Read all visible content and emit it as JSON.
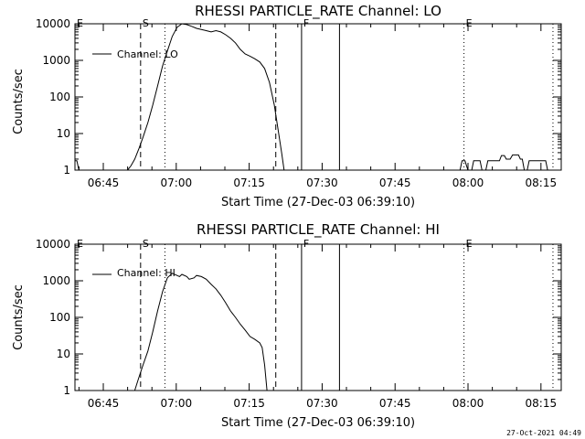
{
  "footer_timestamp": "27-Oct-2021 04:49",
  "chart_data": [
    {
      "type": "line",
      "title": "RHESSI PARTICLE_RATE Channel: LO",
      "xlabel": "Start Time (27-Dec-03 06:39:10)",
      "ylabel": "Counts/sec",
      "yscale": "log",
      "ylim": [
        1,
        10000
      ],
      "xlim_minutes": [
        0,
        100
      ],
      "x_tick_minutes": [
        5.83,
        20.83,
        35.83,
        50.83,
        65.83,
        80.83,
        95.83
      ],
      "x_tick_labels": [
        "06:45",
        "07:00",
        "07:15",
        "07:30",
        "07:45",
        "08:00",
        "08:15"
      ],
      "y_tick_values": [
        1,
        10,
        100,
        1000,
        10000
      ],
      "y_tick_labels": [
        "1",
        "10",
        "100",
        "1000",
        "10000"
      ],
      "legend": "Channel: LO",
      "markers": [
        {
          "label": "E",
          "x_minutes": 0,
          "style": "none"
        },
        {
          "label": "S",
          "x_minutes": 13.5,
          "style": "dashed"
        },
        {
          "label": "",
          "x_minutes": 18.5,
          "style": "dotted"
        },
        {
          "label": "",
          "x_minutes": 41.3,
          "style": "dashed"
        },
        {
          "label": "F",
          "x_minutes": 46.6,
          "style": "solid"
        },
        {
          "label": "",
          "x_minutes": 54.4,
          "style": "solid"
        },
        {
          "label": "E",
          "x_minutes": 80.0,
          "style": "dotted"
        },
        {
          "label": "",
          "x_minutes": 98.3,
          "style": "dotted"
        }
      ],
      "series": [
        {
          "name": "Channel: LO",
          "segments": [
            [
              [
                0,
                1.8
              ],
              [
                0.4,
                1.8
              ],
              [
                0.8,
                1.0
              ],
              [
                1.5,
                1.0
              ]
            ],
            [
              [
                10.8,
                1.0
              ],
              [
                11.5,
                1.3
              ],
              [
                12.3,
                2.0
              ],
              [
                13.2,
                4.0
              ],
              [
                14.0,
                8.0
              ],
              [
                15.0,
                20
              ],
              [
                16.0,
                60
              ],
              [
                17.0,
                200
              ],
              [
                18.0,
                700
              ],
              [
                19.0,
                1800
              ],
              [
                20.0,
                4500
              ],
              [
                21.0,
                8000
              ],
              [
                22.0,
                10000
              ],
              [
                23.0,
                9500
              ],
              [
                24.0,
                8500
              ],
              [
                25.0,
                7500
              ],
              [
                26.0,
                7000
              ],
              [
                27.0,
                6500
              ],
              [
                28.0,
                6000
              ],
              [
                29.0,
                6500
              ],
              [
                30.0,
                6000
              ],
              [
                31.0,
                5000
              ],
              [
                32.0,
                4000
              ],
              [
                33.0,
                3000
              ],
              [
                34.0,
                2000
              ],
              [
                35.0,
                1500
              ],
              [
                36.0,
                1300
              ],
              [
                37.0,
                1100
              ],
              [
                38.0,
                900
              ],
              [
                39.0,
                600
              ],
              [
                40.0,
                250
              ],
              [
                41.0,
                60
              ],
              [
                41.8,
                12
              ],
              [
                42.5,
                3
              ],
              [
                43.0,
                1.0
              ]
            ],
            [
              [
                79.2,
                1.0
              ],
              [
                79.6,
                1.8
              ],
              [
                80.2,
                1.8
              ],
              [
                80.8,
                1.0
              ],
              [
                81.6,
                1.0
              ],
              [
                82.0,
                1.8
              ],
              [
                83.3,
                1.8
              ],
              [
                83.7,
                1.0
              ],
              [
                84.5,
                1.0
              ],
              [
                84.9,
                1.8
              ],
              [
                87.3,
                1.8
              ],
              [
                87.7,
                2.5
              ],
              [
                88.3,
                2.5
              ],
              [
                88.7,
                2.0
              ],
              [
                89.5,
                2.0
              ],
              [
                90.0,
                2.6
              ],
              [
                91.2,
                2.6
              ],
              [
                91.6,
                2.0
              ],
              [
                92.0,
                2.0
              ],
              [
                92.4,
                1.0
              ],
              [
                93.0,
                1.0
              ],
              [
                93.4,
                1.8
              ],
              [
                96.8,
                1.8
              ],
              [
                97.2,
                1.0
              ]
            ]
          ]
        }
      ]
    },
    {
      "type": "line",
      "title": "RHESSI PARTICLE_RATE Channel: HI",
      "xlabel": "Start Time (27-Dec-03 06:39:10)",
      "ylabel": "Counts/sec",
      "yscale": "log",
      "ylim": [
        1,
        10000
      ],
      "xlim_minutes": [
        0,
        100
      ],
      "x_tick_minutes": [
        5.83,
        20.83,
        35.83,
        50.83,
        65.83,
        80.83,
        95.83
      ],
      "x_tick_labels": [
        "06:45",
        "07:00",
        "07:15",
        "07:30",
        "07:45",
        "08:00",
        "08:15"
      ],
      "y_tick_values": [
        1,
        10,
        100,
        1000,
        10000
      ],
      "y_tick_labels": [
        "1",
        "10",
        "100",
        "1000",
        "10000"
      ],
      "legend": "Channel: HI",
      "markers": [
        {
          "label": "E",
          "x_minutes": 0,
          "style": "none"
        },
        {
          "label": "S",
          "x_minutes": 13.5,
          "style": "dashed"
        },
        {
          "label": "",
          "x_minutes": 18.5,
          "style": "dotted"
        },
        {
          "label": "",
          "x_minutes": 41.3,
          "style": "dashed"
        },
        {
          "label": "F",
          "x_minutes": 46.6,
          "style": "solid"
        },
        {
          "label": "",
          "x_minutes": 54.4,
          "style": "solid"
        },
        {
          "label": "E",
          "x_minutes": 80.0,
          "style": "dotted"
        },
        {
          "label": "",
          "x_minutes": 98.3,
          "style": "dotted"
        }
      ],
      "series": [
        {
          "name": "Channel: HI",
          "segments": [
            [
              [
                12.3,
                1.0
              ],
              [
                13.0,
                2.0
              ],
              [
                14.0,
                5.0
              ],
              [
                15.0,
                12
              ],
              [
                16.0,
                40
              ],
              [
                17.0,
                150
              ],
              [
                18.0,
                500
              ],
              [
                19.0,
                1200
              ],
              [
                20.0,
                1600
              ],
              [
                21.0,
                1400
              ],
              [
                21.5,
                1300
              ],
              [
                22.0,
                1500
              ],
              [
                23.0,
                1300
              ],
              [
                23.5,
                1100
              ],
              [
                24.5,
                1200
              ],
              [
                25.0,
                1400
              ],
              [
                26.0,
                1300
              ],
              [
                27.0,
                1100
              ],
              [
                28.0,
                800
              ],
              [
                29.0,
                600
              ],
              [
                30.0,
                400
              ],
              [
                31.0,
                250
              ],
              [
                32.0,
                150
              ],
              [
                33.0,
                100
              ],
              [
                34.0,
                65
              ],
              [
                35.0,
                45
              ],
              [
                36.0,
                30
              ],
              [
                37.0,
                25
              ],
              [
                38.0,
                20
              ],
              [
                38.5,
                15
              ],
              [
                39.0,
                5
              ],
              [
                39.5,
                1.0
              ]
            ]
          ]
        }
      ]
    }
  ]
}
